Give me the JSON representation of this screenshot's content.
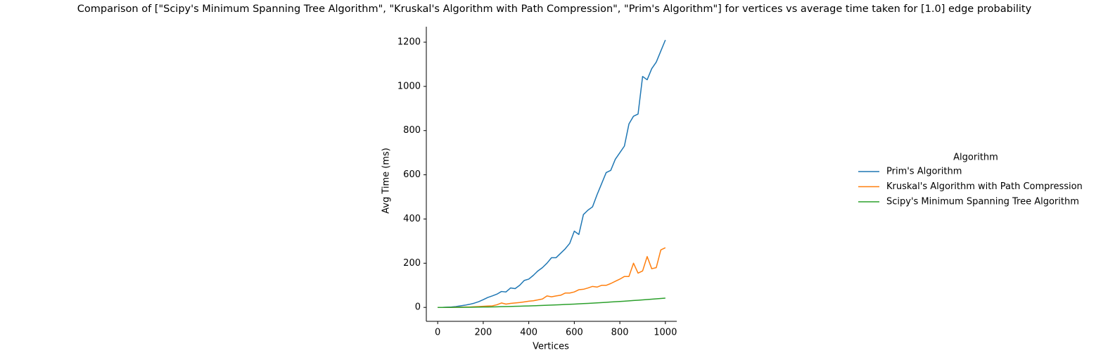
{
  "chart_data": {
    "type": "line",
    "title": "Comparison of [\"Scipy's Minimum Spanning Tree Algorithm\", \"Kruskal's Algorithm with Path Compression\", \"Prim's Algorithm\"] for vertices vs average time taken for [1.0] edge probability",
    "x_label": "Vertices",
    "y_label": "Avg Time (ms)",
    "legend_title": "Algorithm",
    "legend": "right",
    "x": [
      0,
      20,
      40,
      60,
      80,
      100,
      120,
      140,
      160,
      180,
      200,
      220,
      240,
      260,
      280,
      300,
      320,
      340,
      360,
      380,
      400,
      420,
      440,
      460,
      480,
      500,
      520,
      540,
      560,
      580,
      600,
      620,
      640,
      660,
      680,
      700,
      720,
      740,
      760,
      780,
      800,
      820,
      840,
      860,
      880,
      900,
      920,
      940,
      960,
      980,
      1000
    ],
    "series": [
      {
        "name": "Prim's Algorithm",
        "color": "#1f77b4",
        "values": [
          0,
          0,
          1,
          2,
          4,
          7,
          10,
          14,
          19,
          26,
          35,
          45,
          52,
          60,
          72,
          70,
          88,
          85,
          100,
          122,
          128,
          145,
          165,
          180,
          200,
          225,
          225,
          245,
          265,
          290,
          345,
          330,
          420,
          440,
          455,
          510,
          560,
          610,
          620,
          670,
          700,
          730,
          830,
          865,
          875,
          1045,
          1030,
          1080,
          1110,
          1160,
          1210
        ]
      },
      {
        "name": "Kruskal's Algorithm with Path Compression",
        "color": "#ff7f0e",
        "values": [
          0,
          0,
          0,
          0,
          1,
          1,
          2,
          2,
          3,
          4,
          5,
          6,
          7,
          12,
          20,
          15,
          18,
          20,
          22,
          25,
          28,
          30,
          34,
          38,
          52,
          48,
          52,
          55,
          65,
          65,
          70,
          80,
          82,
          88,
          95,
          92,
          100,
          100,
          108,
          118,
          128,
          140,
          140,
          200,
          155,
          165,
          230,
          175,
          180,
          260,
          270
        ]
      },
      {
        "name": "Scipy's Minimum Spanning Tree Algorithm",
        "color": "#2ca02c",
        "values": [
          0,
          0,
          0.1,
          0.2,
          0.3,
          0.4,
          0.6,
          0.8,
          1.1,
          1.4,
          1.7,
          2,
          2.4,
          2.8,
          3.3,
          3.8,
          4.3,
          4.9,
          5.4,
          6.1,
          6.7,
          7.4,
          8.1,
          8.9,
          9.7,
          10.5,
          11.4,
          12.2,
          13.2,
          14.1,
          15.1,
          16.1,
          17.2,
          18.3,
          19.4,
          20.6,
          21.8,
          23,
          24.3,
          25.6,
          26.9,
          28.2,
          29.6,
          31.1,
          32.5,
          34,
          35.5,
          37.1,
          38.7,
          40.3,
          42
        ]
      }
    ],
    "xlim": [
      -50,
      1050
    ],
    "ylim": [
      -63,
      1270
    ],
    "xticks": [
      0,
      200,
      400,
      600,
      800,
      1000
    ],
    "yticks": [
      0,
      200,
      400,
      600,
      800,
      1000,
      1200
    ]
  }
}
